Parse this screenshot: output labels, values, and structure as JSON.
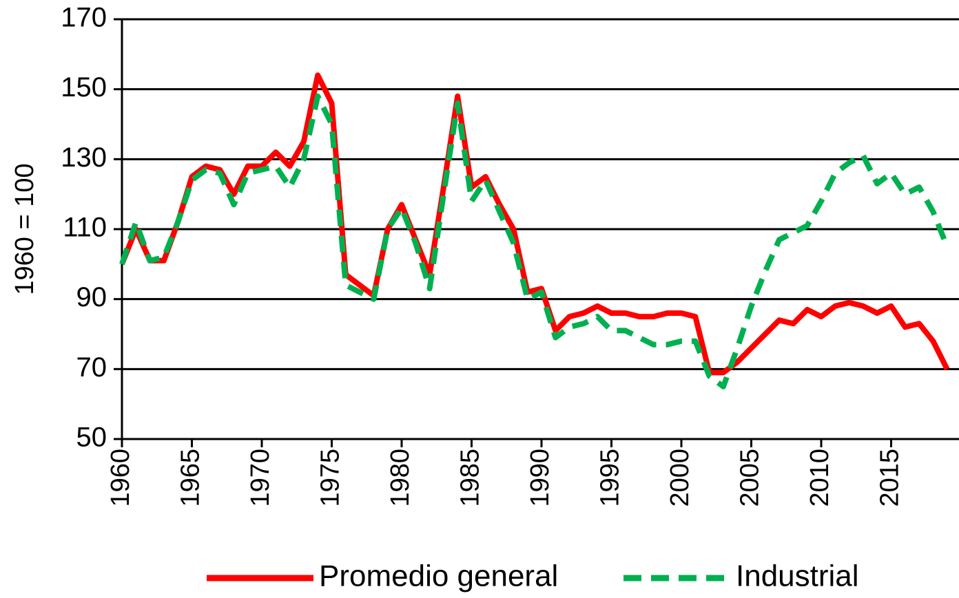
{
  "chart_data": {
    "type": "line",
    "y_label": "1960 = 100",
    "x": [
      1960,
      1961,
      1962,
      1963,
      1964,
      1965,
      1966,
      1967,
      1968,
      1969,
      1970,
      1971,
      1972,
      1973,
      1974,
      1975,
      1976,
      1977,
      1978,
      1979,
      1980,
      1981,
      1982,
      1983,
      1984,
      1985,
      1986,
      1987,
      1988,
      1989,
      1990,
      1991,
      1992,
      1993,
      1994,
      1995,
      1996,
      1997,
      1998,
      1999,
      2000,
      2001,
      2002,
      2003,
      2004,
      2005,
      2006,
      2007,
      2008,
      2009,
      2010,
      2011,
      2012,
      2013,
      2014,
      2015,
      2016,
      2017,
      2018,
      2019
    ],
    "series": [
      {
        "name": "Promedio general",
        "color": "#ff0000",
        "dash": false,
        "values": [
          100,
          110,
          101,
          101,
          112,
          125,
          128,
          127,
          120,
          128,
          128,
          132,
          128,
          135,
          154,
          146,
          97,
          94,
          91,
          110,
          117,
          107,
          97,
          122,
          148,
          122,
          125,
          117,
          110,
          92,
          93,
          81,
          85,
          86,
          88,
          86,
          86,
          85,
          85,
          86,
          86,
          85,
          69,
          69,
          72,
          76,
          80,
          84,
          83,
          87,
          85,
          88,
          89,
          88,
          86,
          88,
          82,
          83,
          78,
          70
        ]
      },
      {
        "name": "Industrial",
        "color": "#00b050",
        "dash": true,
        "values": [
          100,
          112,
          101,
          102,
          112,
          124,
          127,
          126,
          117,
          126,
          127,
          128,
          122,
          130,
          148,
          140,
          94,
          92,
          90,
          110,
          116,
          106,
          93,
          120,
          146,
          118,
          124,
          115,
          106,
          90,
          92,
          79,
          82,
          83,
          85,
          81,
          81,
          79,
          77,
          77,
          78,
          78,
          68,
          65,
          76,
          88,
          98,
          107,
          109,
          111,
          118,
          126,
          129,
          131,
          123,
          126,
          120,
          122,
          115,
          105
        ]
      }
    ],
    "xlim": [
      1960,
      2020
    ],
    "xticks": [
      1960,
      1965,
      1970,
      1975,
      1980,
      1985,
      1990,
      1995,
      2000,
      2005,
      2010,
      2015
    ],
    "ylim": [
      50,
      170
    ],
    "yticks": [
      50,
      70,
      90,
      110,
      130,
      150,
      170
    ],
    "grid": true,
    "legend": "bottom"
  }
}
